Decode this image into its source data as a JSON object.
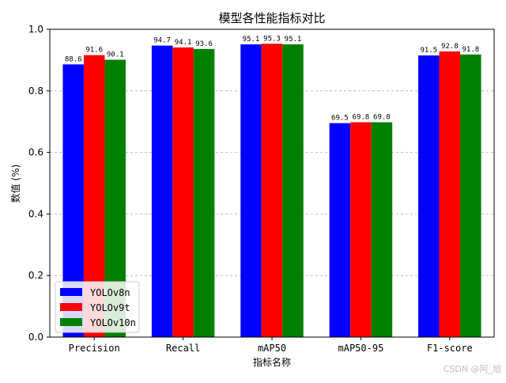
{
  "chart_data": {
    "type": "bar",
    "title": "模型各性能指标对比",
    "xlabel": "指标名称",
    "ylabel": "数值 (%)",
    "ylim": [
      0,
      1.0
    ],
    "yticks": [
      "0.0",
      "0.2",
      "0.4",
      "0.6",
      "0.8",
      "1.0"
    ],
    "grid": "y-dashed",
    "legend_position": "bottom-left",
    "categories": [
      "Precision",
      "Recall",
      "mAP50",
      "mAP50-95",
      "F1-score"
    ],
    "series": [
      {
        "name": "YOLOv8n",
        "color": "#0000ff",
        "values": [
          0.886,
          0.947,
          0.951,
          0.695,
          0.915
        ],
        "labels": [
          "88.6",
          "94.7",
          "95.1",
          "69.5",
          "91.5"
        ]
      },
      {
        "name": "YOLOv9t",
        "color": "#ff0000",
        "values": [
          0.916,
          0.941,
          0.953,
          0.698,
          0.928
        ],
        "labels": [
          "91.6",
          "94.1",
          "95.3",
          "69.8",
          "92.8"
        ]
      },
      {
        "name": "YOLOv10n",
        "color": "#008000",
        "values": [
          0.901,
          0.936,
          0.951,
          0.698,
          0.918
        ],
        "labels": [
          "90.1",
          "93.6",
          "95.1",
          "69.8",
          "91.8"
        ]
      }
    ]
  },
  "watermark": "CSDN @阿_旭"
}
